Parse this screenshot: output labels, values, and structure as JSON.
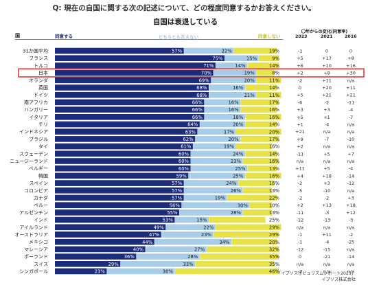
{
  "question": "Q: 現在の自国に関する次の記述について、どの程度同意するかお答えください。",
  "chart_title": "自国は衰退している",
  "column_country": "国",
  "legend": {
    "agree": "同意する",
    "neutral": "どちらとも言えない",
    "disagree": "同意しない"
  },
  "change_header": "〇年からの変化(同意率)",
  "years": [
    "2023",
    "2021",
    "2016"
  ],
  "footer": {
    "report": "「イプソスポピュリズムレポート2025」",
    "company": "イプソス株式会社"
  },
  "colors": {
    "agree": "#1c2b7a",
    "neutral": "#a8cde8",
    "disagree": "#e8e24a",
    "highlight": "#e53935"
  },
  "highlight_row": "日本",
  "chart_data": {
    "type": "bar",
    "stacked": true,
    "orientation": "horizontal",
    "title": "自国は衰退している",
    "categories": [
      "31か国平均",
      "フランス",
      "トルコ",
      "日本",
      "オランダ",
      "英国",
      "ドイツ",
      "南アフリカ",
      "ハンガリー",
      "イタリア",
      "チリ",
      "インドネシア",
      "ブラジル",
      "タイ",
      "スウェーデン",
      "ニュージーランド",
      "ベルギー",
      "韓国",
      "スペイン",
      "コロンビア",
      "カナダ",
      "ペルー",
      "アルゼンチン",
      "インド",
      "アイルランド",
      "オーストラリア",
      "メキシコ",
      "マレーシア",
      "ポーランド",
      "スイス",
      "シンガポール"
    ],
    "series": [
      {
        "name": "同意する",
        "values": [
          57,
          75,
          71,
          70,
          69,
          68,
          68,
          66,
          66,
          66,
          64,
          63,
          62,
          61,
          60,
          60,
          60,
          59,
          57,
          57,
          57,
          56,
          55,
          53,
          49,
          47,
          44,
          40,
          36,
          29,
          23
        ]
      },
      {
        "name": "どちらとも言えない",
        "values": [
          22,
          15,
          14,
          19,
          20,
          16,
          21,
          16,
          16,
          18,
          20,
          17,
          20,
          19,
          24,
          23,
          25,
          25,
          24,
          26,
          19,
          30,
          28,
          15,
          22,
          23,
          34,
          27,
          28,
          33,
          30
        ]
      },
      {
        "name": "同意しない",
        "values": [
          19,
          9,
          14,
          8,
          11,
          14,
          11,
          17,
          16,
          16,
          14,
          20,
          17,
          16,
          14,
          16,
          13,
          16,
          16,
          13,
          22,
          10,
          13,
          25,
          29,
          29,
          20,
          32,
          35,
          35,
          46
        ]
      }
    ],
    "change": {
      "2023": [
        "-1",
        "+5",
        "+6",
        "+2",
        "-2",
        "0",
        "+5",
        "-6",
        "+3",
        "+5",
        "+1",
        "+21",
        "+9",
        "+2",
        "-11",
        "n/a",
        "+11",
        "+4",
        "-2",
        "-5",
        "-2",
        "+2",
        "-11",
        "-12",
        "n/a",
        "-1",
        "-1",
        "-12",
        "0",
        "n/a",
        "-7"
      ],
      "2021": [
        "0",
        "+17",
        "+10",
        "+8",
        "+11",
        "+20",
        "+21",
        "-2",
        "+3",
        "+1",
        "-4",
        "n/a",
        "-7",
        "n/a",
        "+5",
        "n/a",
        "+5",
        "+18",
        "+3",
        "-10",
        "-2",
        "+13",
        "-3",
        "-13",
        "n/a",
        "+11",
        "-4",
        "-15",
        "-21",
        "n/a",
        "n/a"
      ],
      "2016": [
        "0",
        "+8",
        "+16",
        "+30",
        "n/a",
        "+11",
        "+21",
        "-11",
        "-4",
        "-7",
        "n/a",
        "n/a",
        "-10",
        "n/a",
        "+7",
        "n/a",
        "-4",
        "-14",
        "-12",
        "n/a",
        "+3",
        "+18",
        "+12",
        "-3",
        "n/a",
        "-2",
        "-25",
        "n/a",
        "-14",
        "n/a",
        "n/a"
      ]
    }
  }
}
